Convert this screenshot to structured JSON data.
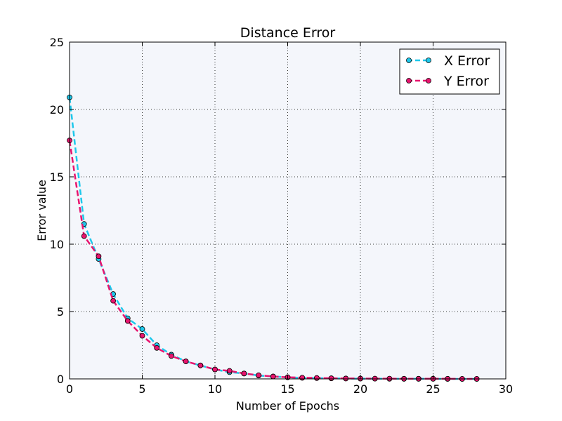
{
  "chart_data": {
    "type": "line",
    "title": "Distance Error",
    "xlabel": "Number of Epochs",
    "ylabel": "Error value",
    "xlim": [
      0,
      30
    ],
    "ylim": [
      0,
      25
    ],
    "xticks": [
      "0",
      "5",
      "10",
      "15",
      "20",
      "25",
      "30"
    ],
    "yticks": [
      "0",
      "5",
      "10",
      "15",
      "20",
      "25"
    ],
    "grid": true,
    "legend_position": "top-right",
    "background": "#f4f6fb",
    "x": [
      0,
      1,
      2,
      3,
      4,
      5,
      6,
      7,
      8,
      9,
      10,
      11,
      12,
      13,
      14,
      15,
      16,
      17,
      18,
      19,
      20,
      21,
      22,
      23,
      24,
      25,
      26,
      27,
      28
    ],
    "series": [
      {
        "name": "X Error",
        "color": "#1ec8eb",
        "line_style": "dashed",
        "marker": "circle",
        "values": [
          20.9,
          11.5,
          8.9,
          6.3,
          4.5,
          3.7,
          2.5,
          1.8,
          1.3,
          1.0,
          0.7,
          0.5,
          0.4,
          0.25,
          0.18,
          0.12,
          0.08,
          0.06,
          0.04,
          0.03,
          0.02,
          0.02,
          0.01,
          0.01,
          0.01,
          0.01,
          0.0,
          0.0,
          0.0
        ]
      },
      {
        "name": "Y Error",
        "color": "#e8146e",
        "line_style": "dashed",
        "marker": "circle",
        "values": [
          17.7,
          10.6,
          9.1,
          5.8,
          4.3,
          3.2,
          2.3,
          1.7,
          1.3,
          1.0,
          0.7,
          0.6,
          0.4,
          0.27,
          0.18,
          0.12,
          0.09,
          0.07,
          0.05,
          0.03,
          0.03,
          0.02,
          0.02,
          0.01,
          0.01,
          0.01,
          0.01,
          0.0,
          0.0
        ]
      }
    ]
  }
}
